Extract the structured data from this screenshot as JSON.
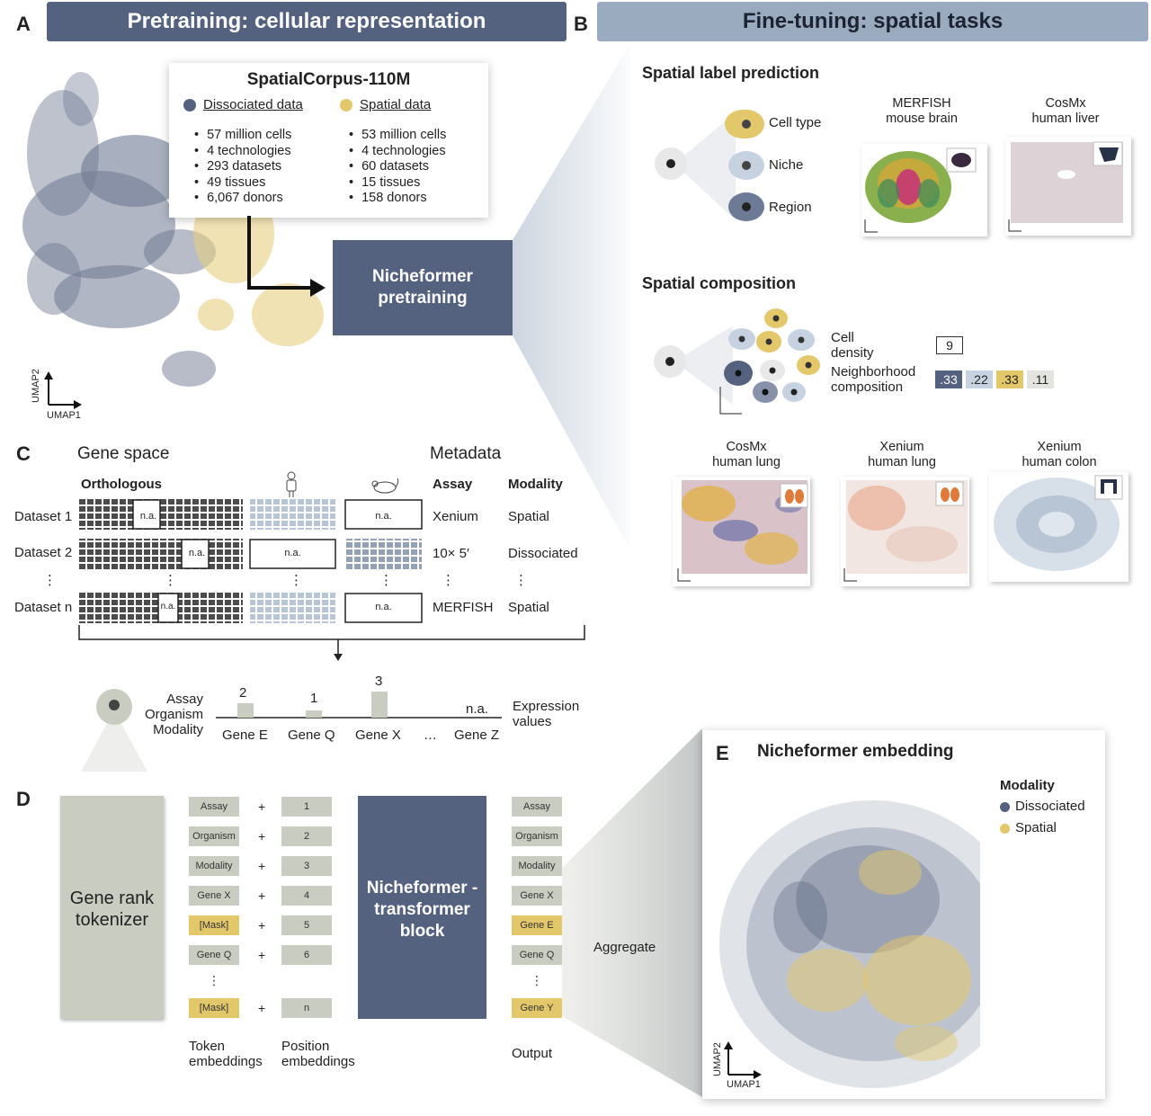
{
  "panels": {
    "a": "A",
    "b": "B",
    "c": "C",
    "d": "D",
    "e": "E"
  },
  "banners": {
    "pretraining": "Pretraining: cellular representation",
    "finetuning": "Fine-tuning: spatial tasks"
  },
  "corpus": {
    "title": "SpatialCorpus-110M",
    "dissociated": {
      "label": "Dissociated data",
      "items": [
        "57 million cells",
        "4 technologies",
        "293 datasets",
        "49 tissues",
        "6,067 donors"
      ]
    },
    "spatial": {
      "label": "Spatial data",
      "items": [
        "53 million cells",
        "4 technologies",
        "60 datasets",
        "15 tissues",
        "158 donors"
      ]
    }
  },
  "umap_axes": {
    "y": "UMAP2",
    "x": "UMAP1"
  },
  "nicheformer_pretraining": [
    "Nicheformer",
    "pretraining"
  ],
  "spatial_label_prediction": {
    "title": "Spatial label prediction",
    "labels": [
      "Cell type",
      "Niche",
      "Region"
    ],
    "cards": [
      {
        "title": [
          "MERFISH",
          "mouse brain"
        ]
      },
      {
        "title": [
          "CosMx",
          "human liver"
        ]
      }
    ]
  },
  "spatial_composition": {
    "title": "Spatial composition",
    "cell_density_label": [
      "Cell",
      "density"
    ],
    "cell_density_value": "9",
    "neighborhood_label": [
      "Neighborhood",
      "composition"
    ],
    "neighborhood_values": [
      ".33",
      ".22",
      ".33",
      ".11"
    ],
    "cards": [
      {
        "title": [
          "CosMx",
          "human lung"
        ]
      },
      {
        "title": [
          "Xenium",
          "human lung"
        ]
      },
      {
        "title": [
          "Xenium",
          "human colon"
        ]
      }
    ]
  },
  "gene_space": {
    "title": "Gene space",
    "metadata_title": "Metadata",
    "orthologous": "Orthologous",
    "assay_header": "Assay",
    "modality_header": "Modality",
    "na": "n.a.",
    "ellipsis": "⋮",
    "rows": [
      {
        "name": "Dataset 1",
        "assay": "Xenium",
        "modality": "Spatial"
      },
      {
        "name": "Dataset 2",
        "assay": "10× 5′",
        "modality": "Dissociated"
      },
      {
        "name": "Dataset n",
        "assay": "MERFISH",
        "modality": "Spatial"
      }
    ]
  },
  "expression": {
    "meta_labels": [
      "Assay",
      "Organism",
      "Modality"
    ],
    "genes": [
      "Gene E",
      "Gene Q",
      "Gene X",
      "…",
      "Gene Z"
    ],
    "ranks": [
      "2",
      "1",
      "3",
      "",
      "n.a."
    ],
    "values_label": [
      "Expression",
      "values"
    ]
  },
  "tokenizer": {
    "label": [
      "Gene rank",
      "tokenizer"
    ],
    "token_embeddings": [
      "Assay",
      "Organism",
      "Modality",
      "Gene X",
      "[Mask]",
      "Gene Q",
      "⋮",
      "[Mask]"
    ],
    "position_embeddings": [
      "1",
      "2",
      "3",
      "4",
      "5",
      "6",
      "",
      "n"
    ],
    "transformer": [
      "Nicheformer -",
      "transformer",
      "block"
    ],
    "output": [
      "Assay",
      "Organism",
      "Modality",
      "Gene X",
      "Gene E",
      "Gene Q",
      "⋮",
      "Gene Y"
    ],
    "token_label": [
      "Token",
      "embeddings"
    ],
    "position_label": [
      "Position",
      "embeddings"
    ],
    "output_label": "Output",
    "aggregate": "Aggregate"
  },
  "embedding": {
    "title": "Nicheformer embedding",
    "legend_title": "Modality",
    "legend": [
      "Dissociated",
      "Spatial"
    ]
  },
  "colors": {
    "dissociated": "#55627f",
    "spatial": "#e3c76b",
    "light_blue": "#c6d2e0",
    "gray_box": "#c9ccc1"
  }
}
